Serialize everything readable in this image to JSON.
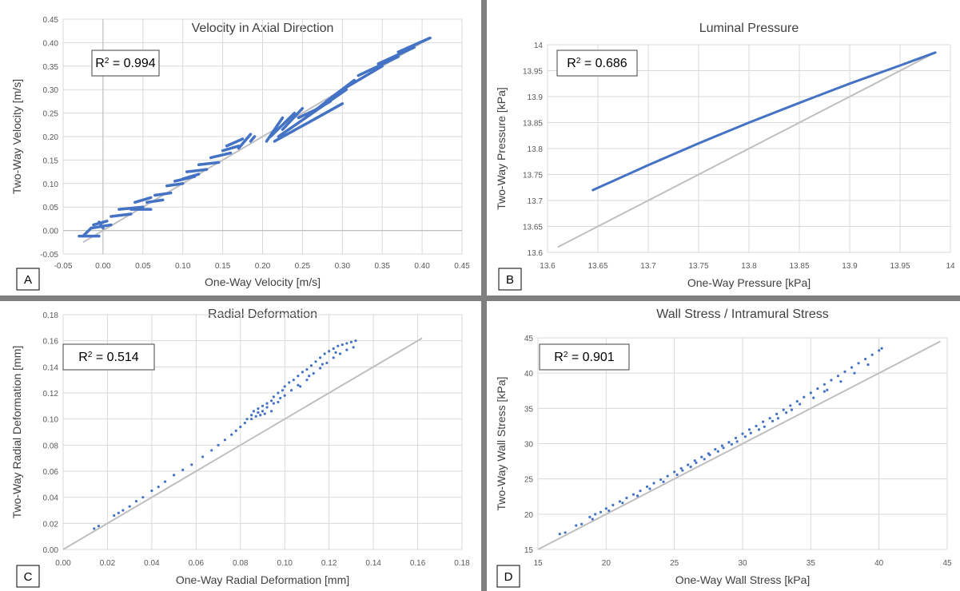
{
  "chart_data": [
    {
      "id": "A",
      "type": "scatter",
      "title": "Velocity in Axial Direction",
      "xlabel": "One-Way Velocity [m/s]",
      "ylabel": "Two-Way Velocity [m/s]",
      "xlim": [
        -0.05,
        0.45
      ],
      "ylim": [
        -0.05,
        0.45
      ],
      "xticks": [
        "-0.05",
        "0.00",
        "0.05",
        "0.10",
        "0.15",
        "0.20",
        "0.25",
        "0.30",
        "0.35",
        "0.40",
        "0.45"
      ],
      "yticks": [
        "-0.05",
        "0.00",
        "0.05",
        "0.10",
        "0.15",
        "0.20",
        "0.25",
        "0.30",
        "0.35",
        "0.40",
        "0.45"
      ],
      "r2_label": "R",
      "r2_value": " = 0.994",
      "panel_label": "A",
      "reference_line": [
        [
          -0.025,
          -0.025
        ],
        [
          0.41,
          0.41
        ]
      ],
      "point_color": "#4472c4",
      "line_color": "#bfbfbf",
      "segments": [
        [
          -0.03,
          -0.012,
          -0.005,
          -0.012
        ],
        [
          -0.025,
          -0.012,
          -0.015,
          0.005
        ],
        [
          -0.015,
          0.005,
          0.01,
          0.012
        ],
        [
          -0.012,
          0.012,
          0.005,
          0.02
        ],
        [
          -0.005,
          0.018,
          0.0,
          0.005
        ],
        [
          0.01,
          0.03,
          0.035,
          0.035
        ],
        [
          0.02,
          0.045,
          0.05,
          0.05
        ],
        [
          0.035,
          0.045,
          0.06,
          0.045
        ],
        [
          0.04,
          0.06,
          0.06,
          0.07
        ],
        [
          0.055,
          0.06,
          0.075,
          0.065
        ],
        [
          0.065,
          0.075,
          0.085,
          0.08
        ],
        [
          0.08,
          0.095,
          0.1,
          0.1
        ],
        [
          0.09,
          0.105,
          0.115,
          0.115
        ],
        [
          0.1,
          0.11,
          0.12,
          0.12
        ],
        [
          0.105,
          0.125,
          0.13,
          0.13
        ],
        [
          0.12,
          0.14,
          0.145,
          0.145
        ],
        [
          0.135,
          0.155,
          0.16,
          0.165
        ],
        [
          0.15,
          0.17,
          0.17,
          0.18
        ],
        [
          0.155,
          0.18,
          0.175,
          0.195
        ],
        [
          0.17,
          0.175,
          0.185,
          0.205
        ],
        [
          0.185,
          0.19,
          0.19,
          0.2
        ],
        [
          0.205,
          0.19,
          0.225,
          0.24
        ],
        [
          0.21,
          0.2,
          0.24,
          0.25
        ],
        [
          0.225,
          0.215,
          0.25,
          0.26
        ],
        [
          0.245,
          0.24,
          0.27,
          0.26
        ],
        [
          0.255,
          0.245,
          0.285,
          0.275
        ],
        [
          0.265,
          0.255,
          0.3,
          0.3
        ],
        [
          0.28,
          0.275,
          0.315,
          0.32
        ],
        [
          0.3,
          0.3,
          0.35,
          0.35
        ],
        [
          0.32,
          0.33,
          0.37,
          0.37
        ],
        [
          0.345,
          0.355,
          0.39,
          0.39
        ],
        [
          0.37,
          0.38,
          0.41,
          0.41
        ],
        [
          0.215,
          0.19,
          0.3,
          0.27
        ],
        [
          0.22,
          0.2,
          0.305,
          0.3
        ]
      ]
    },
    {
      "id": "B",
      "type": "scatter",
      "title": "Luminal Pressure",
      "xlabel": "One-Way Pressure [kPa]",
      "ylabel": "Two-Way Pressure [kPa]",
      "xlim": [
        13.6,
        14.0
      ],
      "ylim": [
        13.6,
        14.0
      ],
      "xticks": [
        "13.6",
        "13.65",
        "13.7",
        "13.75",
        "13.8",
        "13.85",
        "13.9",
        "13.95",
        "14"
      ],
      "yticks": [
        "13.6",
        "13.65",
        "13.7",
        "13.75",
        "13.8",
        "13.85",
        "13.9",
        "13.95",
        "14"
      ],
      "r2_label": "R",
      "r2_value": " = 0.686",
      "panel_label": "B",
      "reference_line": [
        [
          13.61,
          13.61
        ],
        [
          13.985,
          13.985
        ]
      ],
      "point_color": "#4472c4",
      "line_color": "#bfbfbf",
      "curve": [
        [
          13.645,
          13.72
        ],
        [
          13.7,
          13.768
        ],
        [
          13.75,
          13.81
        ],
        [
          13.8,
          13.85
        ],
        [
          13.85,
          13.888
        ],
        [
          13.9,
          13.925
        ],
        [
          13.95,
          13.96
        ],
        [
          13.985,
          13.985
        ]
      ]
    },
    {
      "id": "C",
      "type": "scatter",
      "title": "Radial Deformation",
      "xlabel": "One-Way Radial Deformation [mm]",
      "ylabel": "Two-Way Radial Deformation [mm]",
      "xlim": [
        0,
        0.18
      ],
      "ylim": [
        0,
        0.18
      ],
      "xticks": [
        "0.00",
        "0.02",
        "0.04",
        "0.06",
        "0.08",
        "0.10",
        "0.12",
        "0.14",
        "0.16",
        "0.18"
      ],
      "yticks": [
        "0.00",
        "0.02",
        "0.04",
        "0.06",
        "0.08",
        "0.10",
        "0.12",
        "0.14",
        "0.16",
        "0.18"
      ],
      "r2_label": "R",
      "r2_value": " = 0.514",
      "panel_label": "C",
      "reference_line": [
        [
          0,
          0
        ],
        [
          0.162,
          0.162
        ]
      ],
      "point_color": "#4472c4",
      "line_color": "#bfbfbf",
      "points": [
        [
          0.014,
          0.016
        ],
        [
          0.016,
          0.018
        ],
        [
          0.023,
          0.026
        ],
        [
          0.025,
          0.028
        ],
        [
          0.027,
          0.03
        ],
        [
          0.03,
          0.033
        ],
        [
          0.033,
          0.037
        ],
        [
          0.036,
          0.04
        ],
        [
          0.04,
          0.045
        ],
        [
          0.043,
          0.048
        ],
        [
          0.046,
          0.052
        ],
        [
          0.05,
          0.057
        ],
        [
          0.054,
          0.061
        ],
        [
          0.058,
          0.065
        ],
        [
          0.063,
          0.071
        ],
        [
          0.067,
          0.076
        ],
        [
          0.07,
          0.08
        ],
        [
          0.073,
          0.084
        ],
        [
          0.076,
          0.088
        ],
        [
          0.078,
          0.091
        ],
        [
          0.08,
          0.094
        ],
        [
          0.082,
          0.097
        ],
        [
          0.083,
          0.1
        ],
        [
          0.085,
          0.103
        ],
        [
          0.086,
          0.106
        ],
        [
          0.088,
          0.108
        ],
        [
          0.09,
          0.11
        ],
        [
          0.092,
          0.112
        ],
        [
          0.094,
          0.114
        ],
        [
          0.095,
          0.117
        ],
        [
          0.097,
          0.12
        ],
        [
          0.099,
          0.122
        ],
        [
          0.1,
          0.125
        ],
        [
          0.102,
          0.128
        ],
        [
          0.104,
          0.13
        ],
        [
          0.106,
          0.133
        ],
        [
          0.108,
          0.136
        ],
        [
          0.11,
          0.138
        ],
        [
          0.112,
          0.141
        ],
        [
          0.114,
          0.144
        ],
        [
          0.116,
          0.147
        ],
        [
          0.118,
          0.15
        ],
        [
          0.12,
          0.152
        ],
        [
          0.122,
          0.154
        ],
        [
          0.124,
          0.156
        ],
        [
          0.126,
          0.157
        ],
        [
          0.128,
          0.158
        ],
        [
          0.13,
          0.159
        ],
        [
          0.132,
          0.16
        ],
        [
          0.088,
          0.105
        ],
        [
          0.09,
          0.106
        ],
        [
          0.092,
          0.109
        ],
        [
          0.095,
          0.112
        ],
        [
          0.098,
          0.116
        ],
        [
          0.1,
          0.118
        ],
        [
          0.103,
          0.122
        ],
        [
          0.106,
          0.126
        ],
        [
          0.11,
          0.13
        ],
        [
          0.113,
          0.135
        ],
        [
          0.116,
          0.139
        ],
        [
          0.119,
          0.143
        ],
        [
          0.122,
          0.147
        ],
        [
          0.125,
          0.15
        ],
        [
          0.128,
          0.153
        ],
        [
          0.131,
          0.155
        ],
        [
          0.085,
          0.1
        ],
        [
          0.087,
          0.102
        ],
        [
          0.089,
          0.103
        ],
        [
          0.091,
          0.104
        ],
        [
          0.094,
          0.106
        ],
        [
          0.097,
          0.113
        ],
        [
          0.107,
          0.125
        ],
        [
          0.111,
          0.133
        ],
        [
          0.117,
          0.142
        ],
        [
          0.123,
          0.151
        ]
      ]
    },
    {
      "id": "D",
      "type": "scatter",
      "title": "Wall Stress / Intramural Stress",
      "xlabel": "One-Way Wall Stress [kPa]",
      "ylabel": "Two-Way Wall Stress [kPa]",
      "xlim": [
        15,
        45
      ],
      "ylim": [
        15,
        45
      ],
      "xticks": [
        "15",
        "20",
        "25",
        "30",
        "35",
        "40",
        "45"
      ],
      "yticks": [
        "15",
        "20",
        "25",
        "30",
        "35",
        "40",
        "45"
      ],
      "r2_label": "R",
      "r2_value": " = 0.901",
      "panel_label": "D",
      "reference_line": [
        [
          15,
          15
        ],
        [
          44.5,
          44.5
        ]
      ],
      "point_color": "#4472c4",
      "line_color": "#bfbfbf",
      "points": [
        [
          16.6,
          17.2
        ],
        [
          17.0,
          17.4
        ],
        [
          17.8,
          18.4
        ],
        [
          18.2,
          18.6
        ],
        [
          18.8,
          19.6
        ],
        [
          19.2,
          20.0
        ],
        [
          19.6,
          20.3
        ],
        [
          20.0,
          20.8
        ],
        [
          20.5,
          21.3
        ],
        [
          21.0,
          21.8
        ],
        [
          21.5,
          22.3
        ],
        [
          22.0,
          22.8
        ],
        [
          22.5,
          23.3
        ],
        [
          23.0,
          23.9
        ],
        [
          23.5,
          24.4
        ],
        [
          24.0,
          24.9
        ],
        [
          24.5,
          25.4
        ],
        [
          25.0,
          26.0
        ],
        [
          25.5,
          26.5
        ],
        [
          26.0,
          27.0
        ],
        [
          26.5,
          27.6
        ],
        [
          27.0,
          28.1
        ],
        [
          27.5,
          28.6
        ],
        [
          28.0,
          29.2
        ],
        [
          28.5,
          29.7
        ],
        [
          29.0,
          30.2
        ],
        [
          29.5,
          30.8
        ],
        [
          30.0,
          31.4
        ],
        [
          30.5,
          32.0
        ],
        [
          31.0,
          32.5
        ],
        [
          31.5,
          33.1
        ],
        [
          32.0,
          33.6
        ],
        [
          32.5,
          34.2
        ],
        [
          33.0,
          34.8
        ],
        [
          33.5,
          35.4
        ],
        [
          34.0,
          36.0
        ],
        [
          34.5,
          36.6
        ],
        [
          35.0,
          37.2
        ],
        [
          35.5,
          37.8
        ],
        [
          36.0,
          38.4
        ],
        [
          36.5,
          39.0
        ],
        [
          37.0,
          39.6
        ],
        [
          37.5,
          40.2
        ],
        [
          38.0,
          40.8
        ],
        [
          38.5,
          41.4
        ],
        [
          39.0,
          42.0
        ],
        [
          39.5,
          42.6
        ],
        [
          40.0,
          43.2
        ],
        [
          40.2,
          43.5
        ],
        [
          19.0,
          19.3
        ],
        [
          20.2,
          20.5
        ],
        [
          21.2,
          21.6
        ],
        [
          22.3,
          22.6
        ],
        [
          23.2,
          23.6
        ],
        [
          24.2,
          24.6
        ],
        [
          25.2,
          25.6
        ],
        [
          26.2,
          26.7
        ],
        [
          27.2,
          27.8
        ],
        [
          28.2,
          28.9
        ],
        [
          29.2,
          29.9
        ],
        [
          30.2,
          31.0
        ],
        [
          31.2,
          32.0
        ],
        [
          32.2,
          33.2
        ],
        [
          33.2,
          34.4
        ],
        [
          34.2,
          35.6
        ],
        [
          35.2,
          36.5
        ],
        [
          36.2,
          37.6
        ],
        [
          37.2,
          38.8
        ],
        [
          38.2,
          40.0
        ],
        [
          39.2,
          41.2
        ],
        [
          25.6,
          26.2
        ],
        [
          26.6,
          27.3
        ],
        [
          27.6,
          28.4
        ],
        [
          28.6,
          29.4
        ],
        [
          29.6,
          30.3
        ],
        [
          30.6,
          31.5
        ],
        [
          31.6,
          32.4
        ],
        [
          32.6,
          33.6
        ],
        [
          33.6,
          34.8
        ],
        [
          36.0,
          37.4
        ]
      ]
    }
  ]
}
